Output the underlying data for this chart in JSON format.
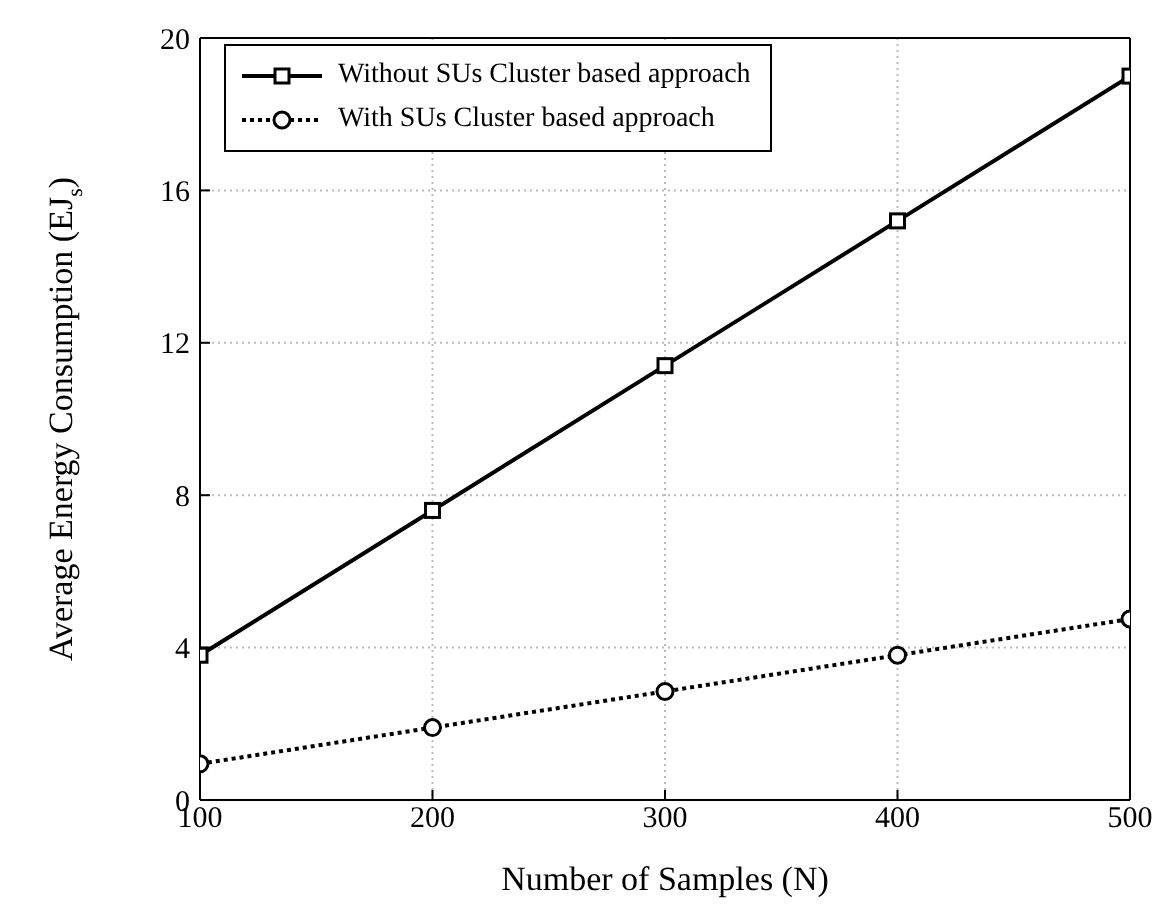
{
  "chart_data": {
    "type": "line",
    "xlabel": "Number of Samples (N)",
    "ylabel": "Average Energy Consumption (EJ$_{s}$)",
    "x": [
      100,
      200,
      300,
      400,
      500
    ],
    "series": [
      {
        "name": "Without SUs Cluster based approach",
        "color": "#000000",
        "values": [
          3.8,
          7.6,
          11.4,
          15.2,
          19.0
        ],
        "marker": "square",
        "line_style": "solid"
      },
      {
        "name": "With SUs Cluster based approach",
        "color": "#000000",
        "values": [
          0.95,
          1.9,
          2.85,
          3.8,
          4.75
        ],
        "marker": "circle",
        "line_style": "dotted"
      }
    ],
    "xlim": [
      100,
      500
    ],
    "xticks": [
      100,
      200,
      300,
      400,
      500
    ],
    "ylim": [
      0,
      20
    ],
    "yticks": [
      0,
      4,
      8,
      12,
      16,
      20
    ],
    "grid": true,
    "legend": "top left"
  }
}
